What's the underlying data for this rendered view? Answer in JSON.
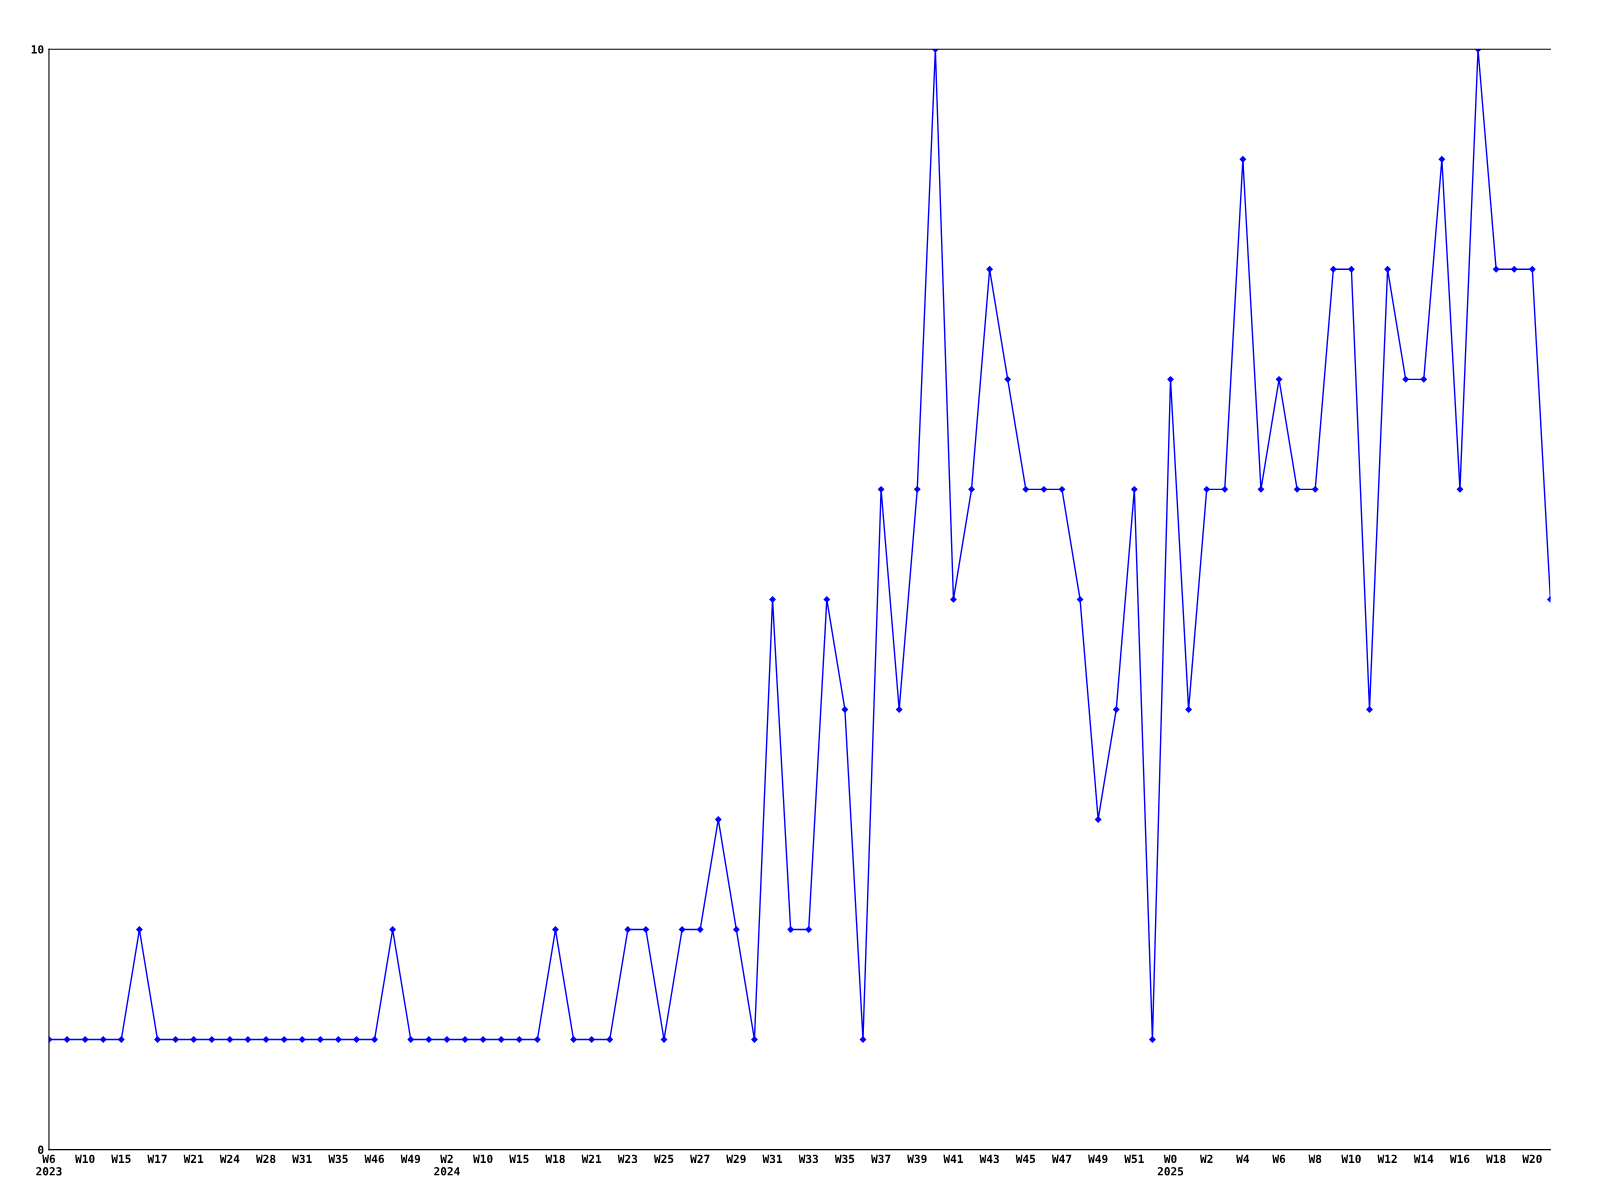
{
  "chart_data": {
    "type": "line",
    "categories": [
      "W6\n2023",
      null,
      "W10",
      null,
      "W15",
      null,
      "W17",
      null,
      "W21",
      null,
      "W24",
      null,
      "W28",
      null,
      "W31",
      null,
      "W35",
      null,
      "W46",
      null,
      "W49",
      null,
      "W2\n2024",
      null,
      "W10",
      null,
      "W15",
      null,
      "W18",
      null,
      "W21",
      null,
      "W23",
      null,
      "W25",
      null,
      "W27",
      null,
      "W29",
      null,
      "W31",
      null,
      "W33",
      null,
      "W35",
      null,
      "W37",
      null,
      "W39",
      null,
      "W41",
      null,
      "W43",
      null,
      "W45",
      null,
      "W47",
      null,
      "W49",
      null,
      "W51",
      null,
      "W0\n2025",
      null,
      "W2",
      null,
      "W4",
      null,
      "W6",
      null,
      "W8",
      null,
      "W10",
      null,
      "W12",
      null,
      "W14",
      null,
      "W16",
      null,
      "W18",
      null,
      "W20",
      null
    ],
    "series": [
      {
        "color": "#0000ff",
        "values": [
          1,
          1,
          1,
          1,
          1,
          2,
          1,
          1,
          1,
          1,
          1,
          1,
          1,
          1,
          1,
          1,
          1,
          1,
          1,
          2,
          1,
          1,
          1,
          1,
          1,
          1,
          1,
          1,
          2,
          1,
          1,
          1,
          2,
          2,
          1,
          2,
          2,
          3,
          2,
          1,
          5,
          2,
          2,
          5,
          4,
          1,
          6,
          4,
          6,
          10,
          5,
          6,
          8,
          7,
          6,
          6,
          6,
          5,
          3,
          4,
          6,
          1,
          7,
          4,
          6,
          6,
          9,
          6,
          7,
          6,
          6,
          8,
          8,
          4,
          8,
          7,
          7,
          9,
          6,
          10,
          8,
          8,
          8,
          5
        ]
      }
    ],
    "ylim": [
      0,
      10
    ],
    "yticks": [
      0,
      10
    ],
    "grid": false,
    "legend": false,
    "marker": "diamond",
    "line_style": "solid"
  }
}
